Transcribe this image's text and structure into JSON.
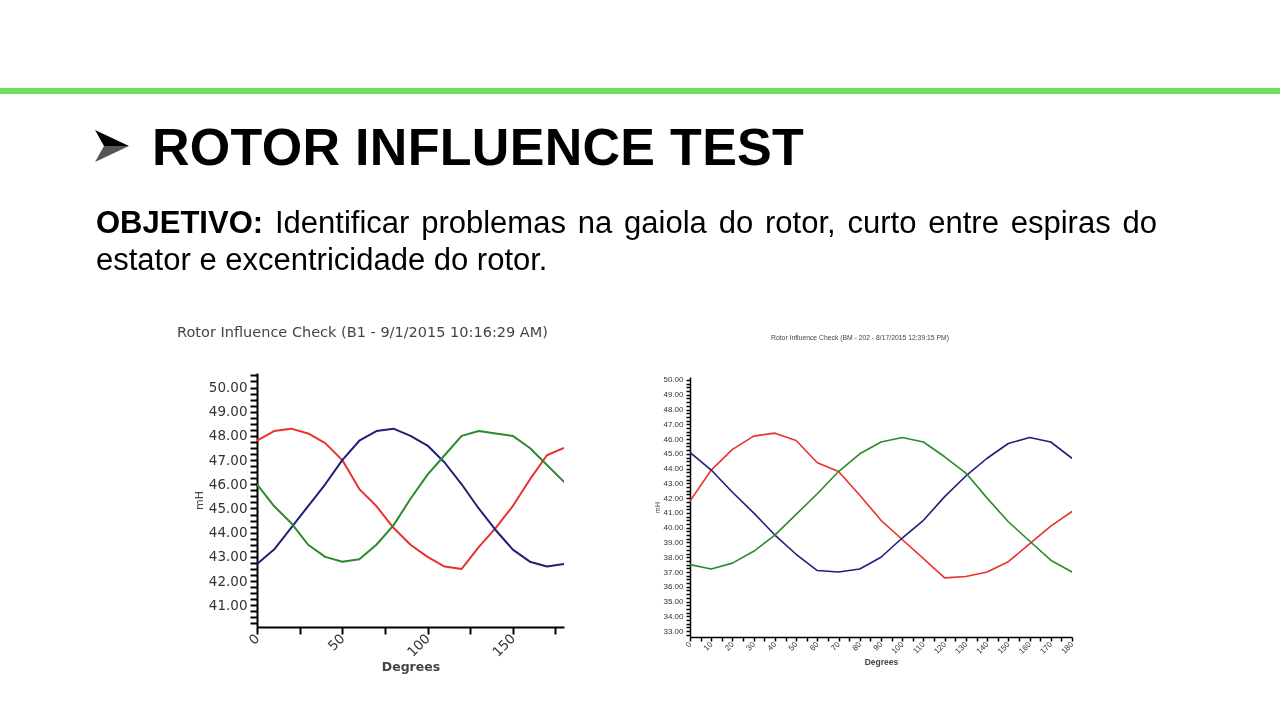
{
  "chart_data": [
    {
      "type": "line",
      "title": "Rotor Influence Check (B1 - 9/1/2015 10:16:29 AM)",
      "xlabel": "Degrees",
      "ylabel": "mH",
      "annotations": [
        "ROTOR INFLUENCE TEST",
        "OBJETIVO:",
        "Identificar problemas na gaiola do rotor, curto entre espiras do estator e excentricidade do rotor."
      ],
      "x": [
        0,
        10,
        20,
        30,
        40,
        50,
        60,
        70,
        80,
        90,
        100,
        110,
        120,
        130,
        140,
        150,
        160,
        170,
        180
      ],
      "series": [
        {
          "color": "#e8322e",
          "values": [
            47.8,
            48.2,
            48.3,
            48.1,
            47.7,
            47.0,
            45.8,
            45.1,
            44.2,
            43.5,
            43.0,
            42.6,
            42.5,
            43.4,
            44.2,
            45.1,
            46.2,
            47.2,
            47.5
          ]
        },
        {
          "color": "#1f1f7a",
          "values": [
            42.7,
            43.3,
            44.2,
            45.1,
            46.0,
            47.0,
            47.8,
            48.2,
            48.3,
            48.0,
            47.6,
            46.9,
            46.0,
            45.0,
            44.1,
            43.3,
            42.8,
            42.6,
            42.7
          ]
        },
        {
          "color": "#2b8a2b",
          "values": [
            46.0,
            45.1,
            44.4,
            43.5,
            43.0,
            42.8,
            42.9,
            43.5,
            44.3,
            45.4,
            46.4,
            47.2,
            48.0,
            48.2,
            48.1,
            48.0,
            47.5,
            46.8,
            46.1
          ]
        }
      ],
      "xlim": [
        0,
        180
      ],
      "xticks": [
        0,
        {
          "value": 25,
          "label": null
        },
        50,
        {
          "value": 75,
          "label": null
        },
        100,
        {
          "value": 125,
          "label": null
        },
        150,
        {
          "value": 175,
          "label": null
        }
      ],
      "ylim": [
        40.1,
        50.6
      ],
      "yticks": [
        {
          "value": 40.25,
          "label": null
        },
        {
          "value": 40.5,
          "label": null
        },
        {
          "value": 40.75,
          "label": null
        },
        {
          "value": 41,
          "label": "41.00"
        },
        {
          "value": 41.25,
          "label": null
        },
        {
          "value": 41.5,
          "label": null
        },
        {
          "value": 41.75,
          "label": null
        },
        {
          "value": 42,
          "label": "42.00"
        },
        {
          "value": 42.25,
          "label": null
        },
        {
          "value": 42.5,
          "label": null
        },
        {
          "value": 42.75,
          "label": null
        },
        {
          "value": 43,
          "label": "43.00"
        },
        {
          "value": 43.25,
          "label": null
        },
        {
          "value": 43.5,
          "label": null
        },
        {
          "value": 43.75,
          "label": null
        },
        {
          "value": 44,
          "label": "44.00"
        },
        {
          "value": 44.25,
          "label": null
        },
        {
          "value": 44.5,
          "label": null
        },
        {
          "value": 44.75,
          "label": null
        },
        {
          "value": 45,
          "label": "45.00"
        },
        {
          "value": 45.25,
          "label": null
        },
        {
          "value": 45.5,
          "label": null
        },
        {
          "value": 45.75,
          "label": null
        },
        {
          "value": 46,
          "label": "46.00"
        },
        {
          "value": 46.25,
          "label": null
        },
        {
          "value": 46.5,
          "label": null
        },
        {
          "value": 46.75,
          "label": null
        },
        {
          "value": 47,
          "label": "47.00"
        },
        {
          "value": 47.25,
          "label": null
        },
        {
          "value": 47.5,
          "label": null
        },
        {
          "value": 47.75,
          "label": null
        },
        {
          "value": 48,
          "label": "48.00"
        },
        {
          "value": 48.25,
          "label": null
        },
        {
          "value": 48.5,
          "label": null
        },
        {
          "value": 48.75,
          "label": null
        },
        {
          "value": 49,
          "label": "49.00"
        },
        {
          "value": 49.25,
          "label": null
        },
        {
          "value": 49.5,
          "label": null
        },
        {
          "value": 49.75,
          "label": null
        },
        {
          "value": 50,
          "label": "50.00"
        },
        {
          "value": 50.25,
          "label": null
        },
        {
          "value": 50.5,
          "label": null
        }
      ]
    },
    {
      "type": "line",
      "title": "Rotor Influence Check (BM - 202 - 8/17/2015 12:39:15 PM)",
      "xlabel": "Degrees",
      "ylabel": "mH",
      "x": [
        0,
        10,
        20,
        30,
        40,
        50,
        60,
        70,
        80,
        90,
        100,
        110,
        120,
        130,
        140,
        150,
        160,
        170,
        180
      ],
      "series": [
        {
          "color": "#e8322e",
          "values": [
            41.8,
            43.9,
            45.3,
            46.2,
            46.4,
            45.9,
            44.4,
            43.8,
            42.2,
            40.5,
            39.2,
            37.9,
            36.6,
            36.7,
            37.0,
            37.7,
            38.9,
            40.1,
            41.1
          ]
        },
        {
          "color": "#1f1f7a",
          "values": [
            45.1,
            43.9,
            42.4,
            41.0,
            39.5,
            38.2,
            37.1,
            37.0,
            37.2,
            38.0,
            39.3,
            40.5,
            42.1,
            43.5,
            44.7,
            45.7,
            46.1,
            45.8,
            44.7
          ]
        },
        {
          "color": "#2b8a2b",
          "values": [
            37.5,
            37.2,
            37.6,
            38.4,
            39.5,
            40.9,
            42.3,
            43.8,
            45.0,
            45.8,
            46.1,
            45.8,
            44.8,
            43.7,
            42.0,
            40.4,
            39.1,
            37.8,
            37.0
          ]
        }
      ],
      "xlim": [
        0,
        180
      ],
      "xticks": [
        0,
        {
          "value": 5,
          "label": null
        },
        10,
        {
          "value": 15,
          "label": null
        },
        20,
        {
          "value": 25,
          "label": null
        },
        30,
        {
          "value": 35,
          "label": null
        },
        40,
        {
          "value": 45,
          "label": null
        },
        50,
        {
          "value": 55,
          "label": null
        },
        60,
        {
          "value": 65,
          "label": null
        },
        70,
        {
          "value": 75,
          "label": null
        },
        80,
        {
          "value": 85,
          "label": null
        },
        90,
        {
          "value": 95,
          "label": null
        },
        100,
        {
          "value": 105,
          "label": null
        },
        110,
        {
          "value": 115,
          "label": null
        },
        120,
        {
          "value": 125,
          "label": null
        },
        130,
        {
          "value": 135,
          "label": null
        },
        140,
        {
          "value": 145,
          "label": null
        },
        150,
        {
          "value": 155,
          "label": null
        },
        160,
        {
          "value": 165,
          "label": null
        },
        170,
        {
          "value": 175,
          "label": null
        },
        180
      ],
      "ylim": [
        32.6,
        50.2
      ],
      "yticks": [
        {
          "value": 32.75,
          "label": null
        },
        {
          "value": 33,
          "label": "33.00"
        },
        {
          "value": 33.25,
          "label": null
        },
        {
          "value": 33.5,
          "label": null
        },
        {
          "value": 33.75,
          "label": null
        },
        {
          "value": 34,
          "label": "34.00"
        },
        {
          "value": 34.25,
          "label": null
        },
        {
          "value": 34.5,
          "label": null
        },
        {
          "value": 34.75,
          "label": null
        },
        {
          "value": 35,
          "label": "35.00"
        },
        {
          "value": 35.25,
          "label": null
        },
        {
          "value": 35.5,
          "label": null
        },
        {
          "value": 35.75,
          "label": null
        },
        {
          "value": 36,
          "label": "36.00"
        },
        {
          "value": 36.25,
          "label": null
        },
        {
          "value": 36.5,
          "label": null
        },
        {
          "value": 36.75,
          "label": null
        },
        {
          "value": 37,
          "label": "37.00"
        },
        {
          "value": 37.25,
          "label": null
        },
        {
          "value": 37.5,
          "label": null
        },
        {
          "value": 37.75,
          "label": null
        },
        {
          "value": 38,
          "label": "38.00"
        },
        {
          "value": 38.25,
          "label": null
        },
        {
          "value": 38.5,
          "label": null
        },
        {
          "value": 38.75,
          "label": null
        },
        {
          "value": 39,
          "label": "39.00"
        },
        {
          "value": 39.25,
          "label": null
        },
        {
          "value": 39.5,
          "label": null
        },
        {
          "value": 39.75,
          "label": null
        },
        {
          "value": 40,
          "label": "40.00"
        },
        {
          "value": 40.25,
          "label": null
        },
        {
          "value": 40.5,
          "label": null
        },
        {
          "value": 40.75,
          "label": null
        },
        {
          "value": 41,
          "label": "41.00"
        },
        {
          "value": 41.25,
          "label": null
        },
        {
          "value": 41.5,
          "label": null
        },
        {
          "value": 41.75,
          "label": null
        },
        {
          "value": 42,
          "label": "42.00"
        },
        {
          "value": 42.25,
          "label": null
        },
        {
          "value": 42.5,
          "label": null
        },
        {
          "value": 42.75,
          "label": null
        },
        {
          "value": 43,
          "label": "43.00"
        },
        {
          "value": 43.25,
          "label": null
        },
        {
          "value": 43.5,
          "label": null
        },
        {
          "value": 43.75,
          "label": null
        },
        {
          "value": 44,
          "label": "44.00"
        },
        {
          "value": 44.25,
          "label": null
        },
        {
          "value": 44.5,
          "label": null
        },
        {
          "value": 44.75,
          "label": null
        },
        {
          "value": 45,
          "label": "45.00"
        },
        {
          "value": 45.25,
          "label": null
        },
        {
          "value": 45.5,
          "label": null
        },
        {
          "value": 45.75,
          "label": null
        },
        {
          "value": 46,
          "label": "46.00"
        },
        {
          "value": 46.25,
          "label": null
        },
        {
          "value": 46.5,
          "label": null
        },
        {
          "value": 46.75,
          "label": null
        },
        {
          "value": 47,
          "label": "47.00"
        },
        {
          "value": 47.25,
          "label": null
        },
        {
          "value": 47.5,
          "label": null
        },
        {
          "value": 47.75,
          "label": null
        },
        {
          "value": 48,
          "label": "48.00"
        },
        {
          "value": 48.25,
          "label": null
        },
        {
          "value": 48.5,
          "label": null
        },
        {
          "value": 48.75,
          "label": null
        },
        {
          "value": 49,
          "label": "49.00"
        },
        {
          "value": 49.25,
          "label": null
        },
        {
          "value": 49.5,
          "label": null
        },
        {
          "value": 49.75,
          "label": null
        },
        {
          "value": 50,
          "label": "50.00"
        }
      ]
    }
  ]
}
